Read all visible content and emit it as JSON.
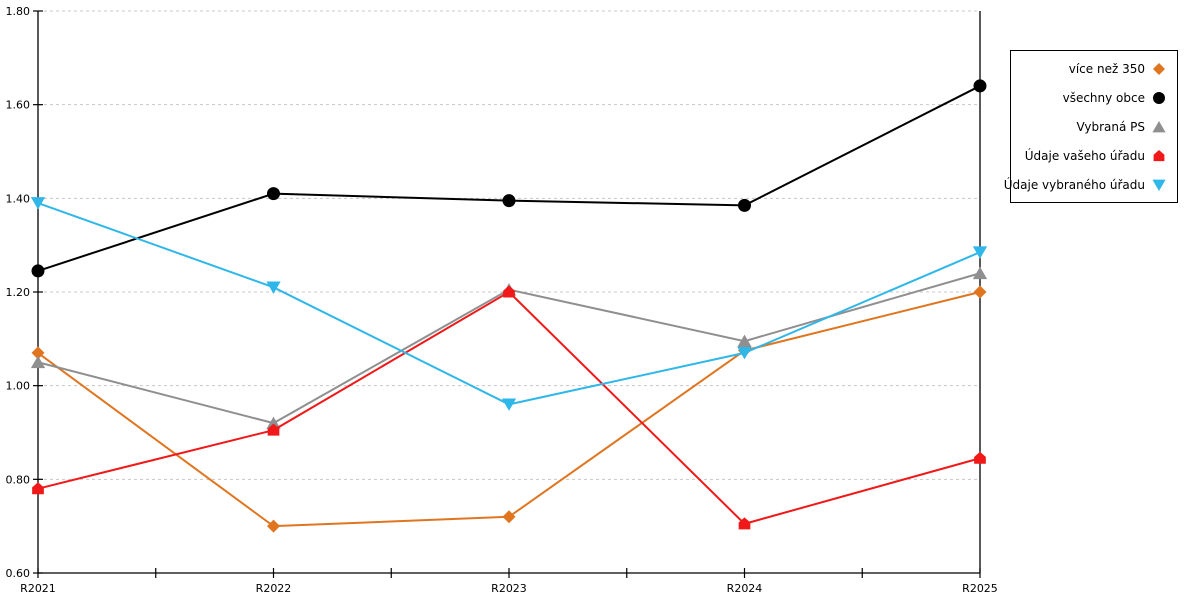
{
  "chart_data": {
    "type": "line",
    "categories": [
      "R2021",
      "R2022",
      "R2023",
      "R2024",
      "R2025"
    ],
    "series": [
      {
        "name": "více než 350",
        "color": "#E0751F",
        "marker": "diamond",
        "values": [
          1.07,
          0.7,
          0.72,
          1.075,
          1.2
        ]
      },
      {
        "name": "všechny obce",
        "color": "#000000",
        "marker": "circle",
        "values": [
          1.245,
          1.41,
          1.395,
          1.385,
          1.64
        ]
      },
      {
        "name": "Vybraná PS",
        "color": "#8F8F8F",
        "marker": "triangle-up",
        "values": [
          1.05,
          0.92,
          1.205,
          1.095,
          1.24
        ]
      },
      {
        "name": "Údaje vašeho úřadu",
        "color": "#F01818",
        "marker": "house-pentagon",
        "values": [
          0.78,
          0.905,
          1.2,
          0.705,
          0.845
        ]
      },
      {
        "name": "Údaje vybraného úřadu",
        "color": "#2FB7E9",
        "marker": "triangle-down",
        "values": [
          1.39,
          1.21,
          0.96,
          1.07,
          1.285
        ]
      }
    ],
    "y_axis": {
      "min": 0.6,
      "max": 1.8,
      "tick_step": 0.2,
      "tick_labels": [
        "0.60",
        "0.80",
        "1.00",
        "1.20",
        "1.40",
        "1.60",
        "1.80"
      ]
    },
    "x_axis": {
      "minor_ticks_between_categories": true
    },
    "grid": {
      "horizontal": true,
      "style": "dashed",
      "color": "#C8C8C8"
    },
    "legend": {
      "position": "top-right",
      "border_color": "#000000",
      "background": "#FFFFFF"
    }
  }
}
